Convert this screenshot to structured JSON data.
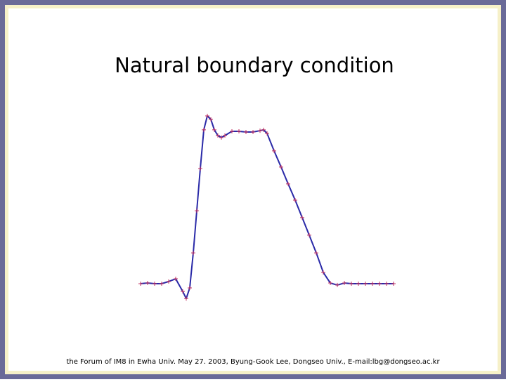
{
  "chart_data": {
    "type": "line",
    "title": "Natural boundary condition",
    "x": [
      0,
      1,
      2,
      3,
      4,
      5,
      6,
      6.5,
      7,
      7.5,
      8,
      8.5,
      9,
      9.5,
      10,
      10.5,
      11,
      11.5,
      12,
      13,
      14,
      15,
      16,
      17,
      17.5,
      18,
      19,
      20,
      21,
      22,
      23,
      24,
      25,
      26,
      27,
      28,
      29,
      30,
      31,
      32,
      33,
      34,
      35,
      36
    ],
    "series": [
      {
        "color": "#2a2aa8",
        "values": [
          0,
          0.04,
          0,
          0,
          0.13,
          0.29,
          -0.46,
          -0.88,
          -0.25,
          1.83,
          4.33,
          6.83,
          9.13,
          9.96,
          9.75,
          9.13,
          8.79,
          8.67,
          8.79,
          9.04,
          9.04,
          9.0,
          9.0,
          9.08,
          9.13,
          8.92,
          7.88,
          6.92,
          5.92,
          4.96,
          3.92,
          2.88,
          1.83,
          0.67,
          0.04,
          -0.08,
          0.04,
          0,
          0,
          0,
          0,
          0,
          0,
          0
        ]
      }
    ],
    "marker_color": "#c03060",
    "xlim": [
      0,
      36
    ],
    "ylim": [
      -1,
      10
    ]
  },
  "footer": "the Forum of IM8 in Ewha Univ. May 27. 2003, Byung-Gook Lee, Dongseo Univ., E-mail:lbg@dongseo.ac.kr"
}
